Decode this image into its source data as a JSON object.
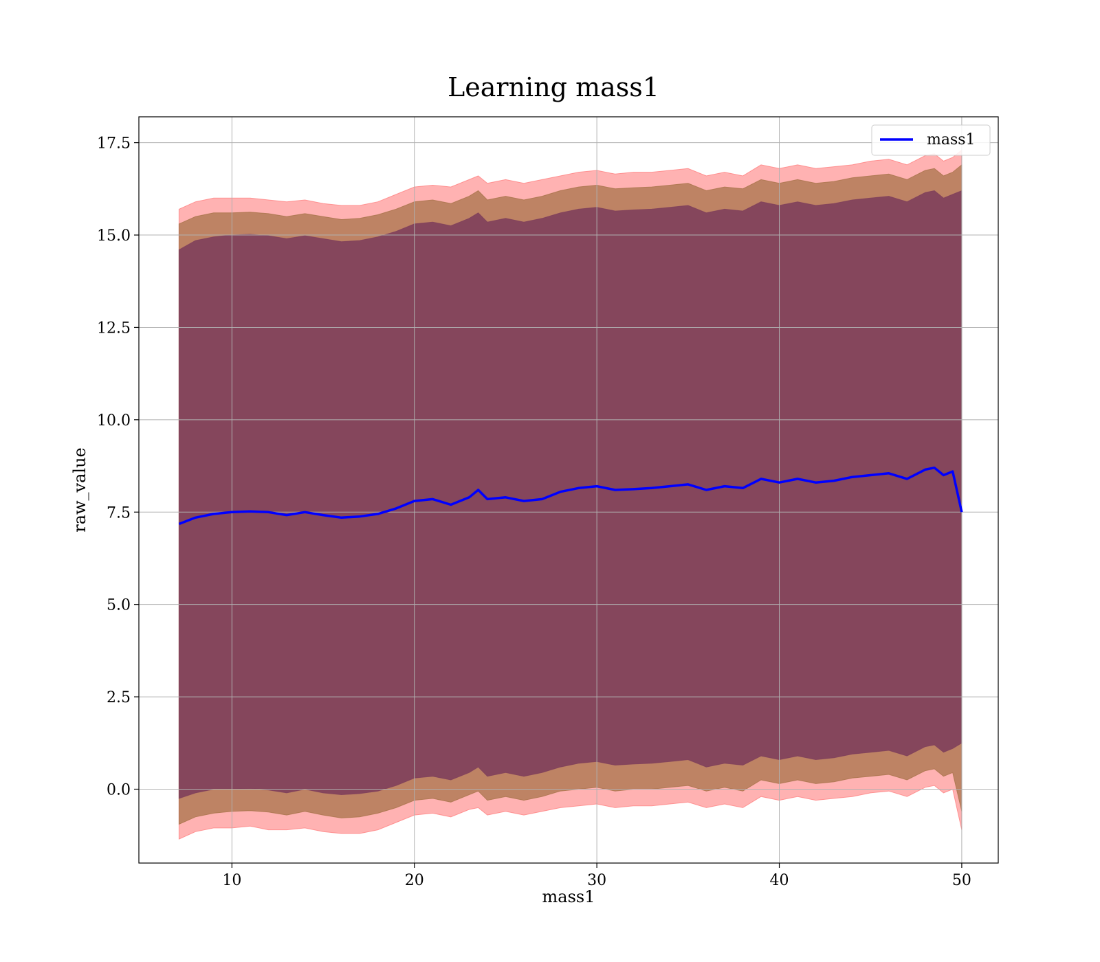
{
  "chart_data": {
    "type": "line",
    "title": "Learning mass1",
    "xlabel": "mass1",
    "ylabel": "raw_value",
    "xlim": [
      4.9,
      52.0
    ],
    "ylim": [
      -2.0,
      18.2
    ],
    "xticks": [
      10,
      20,
      30,
      40,
      50
    ],
    "yticks": [
      0.0,
      2.5,
      5.0,
      7.5,
      10.0,
      12.5,
      15.0,
      17.5
    ],
    "xtick_labels": [
      "10",
      "20",
      "30",
      "40",
      "50"
    ],
    "ytick_labels": [
      "0.0",
      "2.5",
      "5.0",
      "7.5",
      "10.0",
      "12.5",
      "15.0",
      "17.5"
    ],
    "grid": true,
    "legend": {
      "placement": "top-right",
      "entries": [
        "mass1"
      ]
    },
    "colors": {
      "line": "#0000ff",
      "band_outer": "#ff7f7f",
      "band_middle": "#a8734a",
      "band_inner": "#7e3f5b",
      "grid": "#b0b0b0"
    },
    "x": [
      7.1,
      8.0,
      9.0,
      10.0,
      11.0,
      12.0,
      13.0,
      14.0,
      15.0,
      16.0,
      17.0,
      18.0,
      19.0,
      20.0,
      21.0,
      22.0,
      23.0,
      23.5,
      24.0,
      25.0,
      26.0,
      27.0,
      28.0,
      29.0,
      30.0,
      31.0,
      32.0,
      33.0,
      34.0,
      35.0,
      36.0,
      37.0,
      38.0,
      39.0,
      40.0,
      41.0,
      42.0,
      43.0,
      44.0,
      45.0,
      46.0,
      47.0,
      48.0,
      48.5,
      49.0,
      49.5,
      50.0
    ],
    "series": [
      {
        "name": "mass1",
        "values": [
          7.18,
          7.35,
          7.45,
          7.5,
          7.52,
          7.5,
          7.42,
          7.5,
          7.42,
          7.35,
          7.38,
          7.45,
          7.6,
          7.8,
          7.85,
          7.7,
          7.9,
          8.1,
          7.85,
          7.9,
          7.8,
          7.85,
          8.05,
          8.15,
          8.2,
          8.1,
          8.12,
          8.15,
          8.2,
          8.25,
          8.1,
          8.2,
          8.15,
          8.4,
          8.3,
          8.4,
          8.3,
          8.35,
          8.45,
          8.5,
          8.55,
          8.4,
          8.65,
          8.7,
          8.5,
          8.6,
          7.5
        ]
      }
    ],
    "bands": [
      {
        "upper": [
          15.7,
          15.9,
          16.0,
          16.0,
          16.0,
          15.95,
          15.9,
          15.95,
          15.85,
          15.8,
          15.8,
          15.9,
          16.1,
          16.3,
          16.35,
          16.3,
          16.5,
          16.6,
          16.4,
          16.5,
          16.4,
          16.5,
          16.6,
          16.7,
          16.75,
          16.65,
          16.7,
          16.7,
          16.75,
          16.8,
          16.6,
          16.7,
          16.6,
          16.9,
          16.8,
          16.9,
          16.8,
          16.85,
          16.9,
          17.0,
          17.05,
          16.9,
          17.15,
          17.2,
          17.0,
          17.1,
          17.3
        ],
        "lower": [
          -1.35,
          -1.15,
          -1.05,
          -1.05,
          -1.0,
          -1.1,
          -1.1,
          -1.05,
          -1.15,
          -1.2,
          -1.2,
          -1.1,
          -0.9,
          -0.7,
          -0.65,
          -0.75,
          -0.55,
          -0.5,
          -0.7,
          -0.6,
          -0.7,
          -0.6,
          -0.5,
          -0.45,
          -0.4,
          -0.5,
          -0.45,
          -0.45,
          -0.4,
          -0.35,
          -0.5,
          -0.4,
          -0.5,
          -0.2,
          -0.3,
          -0.2,
          -0.3,
          -0.25,
          -0.2,
          -0.1,
          -0.05,
          -0.2,
          0.05,
          0.1,
          -0.1,
          0.0,
          -1.1
        ]
      },
      {
        "upper": [
          15.3,
          15.5,
          15.6,
          15.6,
          15.62,
          15.58,
          15.5,
          15.58,
          15.5,
          15.42,
          15.45,
          15.55,
          15.7,
          15.9,
          15.95,
          15.85,
          16.05,
          16.2,
          15.95,
          16.05,
          15.95,
          16.05,
          16.2,
          16.3,
          16.35,
          16.25,
          16.28,
          16.3,
          16.35,
          16.4,
          16.2,
          16.3,
          16.25,
          16.5,
          16.4,
          16.5,
          16.4,
          16.45,
          16.55,
          16.6,
          16.65,
          16.5,
          16.75,
          16.8,
          16.6,
          16.7,
          16.9
        ],
        "lower": [
          -0.95,
          -0.75,
          -0.65,
          -0.6,
          -0.58,
          -0.62,
          -0.7,
          -0.6,
          -0.7,
          -0.78,
          -0.75,
          -0.65,
          -0.5,
          -0.3,
          -0.25,
          -0.35,
          -0.15,
          -0.05,
          -0.3,
          -0.2,
          -0.3,
          -0.2,
          -0.05,
          0.0,
          0.05,
          -0.05,
          0.0,
          0.0,
          0.05,
          0.1,
          -0.05,
          0.05,
          -0.05,
          0.25,
          0.15,
          0.25,
          0.15,
          0.2,
          0.3,
          0.35,
          0.4,
          0.25,
          0.5,
          0.55,
          0.35,
          0.45,
          -0.6
        ]
      },
      {
        "upper": [
          14.6,
          14.85,
          14.95,
          15.0,
          15.02,
          14.98,
          14.9,
          14.98,
          14.9,
          14.82,
          14.85,
          14.95,
          15.1,
          15.3,
          15.35,
          15.25,
          15.45,
          15.6,
          15.35,
          15.45,
          15.35,
          15.45,
          15.6,
          15.7,
          15.75,
          15.65,
          15.68,
          15.7,
          15.75,
          15.8,
          15.6,
          15.7,
          15.65,
          15.9,
          15.8,
          15.9,
          15.8,
          15.85,
          15.95,
          16.0,
          16.05,
          15.9,
          16.15,
          16.2,
          16.0,
          16.1,
          16.2
        ],
        "lower": [
          -0.25,
          -0.1,
          0.0,
          0.0,
          0.02,
          -0.02,
          -0.1,
          0.0,
          -0.1,
          -0.15,
          -0.12,
          -0.05,
          0.1,
          0.3,
          0.35,
          0.25,
          0.45,
          0.6,
          0.35,
          0.45,
          0.35,
          0.45,
          0.6,
          0.7,
          0.75,
          0.65,
          0.68,
          0.7,
          0.75,
          0.8,
          0.6,
          0.7,
          0.65,
          0.9,
          0.8,
          0.9,
          0.8,
          0.85,
          0.95,
          1.0,
          1.05,
          0.9,
          1.15,
          1.2,
          1.0,
          1.1,
          1.25
        ]
      }
    ]
  }
}
